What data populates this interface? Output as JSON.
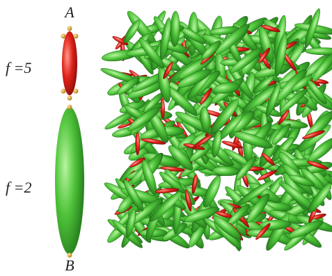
{
  "labels": {
    "top_end": "A",
    "bottom_end": "B",
    "red_particle": "f =5",
    "green_particle": "f =2"
  }
}
